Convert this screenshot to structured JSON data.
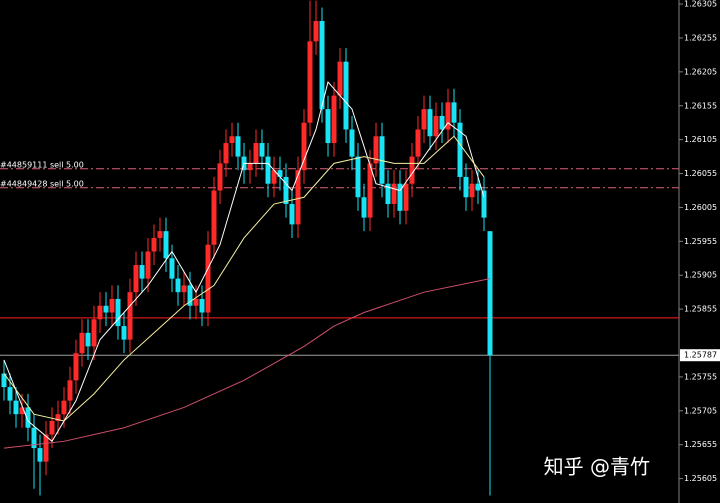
{
  "chart_data": {
    "type": "candlestick",
    "up_color": "#ff2a2a",
    "down_color": "#19e3f5",
    "ylim": [
      1.25569,
      1.26311
    ],
    "yticks": [
      1.26305,
      1.26255,
      1.26205,
      1.26155,
      1.26105,
      1.26055,
      1.26005,
      1.25955,
      1.25905,
      1.25855,
      1.25755,
      1.25705,
      1.25655,
      1.25605
    ],
    "open": [
      1.2576,
      1.2574,
      1.2572,
      1.257,
      1.2571,
      1.2568,
      1.2565,
      1.2563,
      1.2567,
      1.2569,
      1.257,
      1.2572,
      1.2575,
      1.2579,
      1.2582,
      1.258,
      1.2584,
      1.2586,
      1.2585,
      1.2587,
      1.2583,
      1.2581,
      1.2588,
      1.2592,
      1.259,
      1.2594,
      1.2596,
      1.2597,
      1.2593,
      1.259,
      1.2588,
      1.2589,
      1.2586,
      1.2587,
      1.2585,
      1.2595,
      1.2603,
      1.2607,
      1.261,
      1.2611,
      1.2608,
      1.2606,
      1.2607,
      1.261,
      1.2608,
      1.2604,
      1.2606,
      1.2605,
      1.2601,
      1.2598,
      1.2606,
      1.2613,
      1.2625,
      1.2628,
      1.2615,
      1.261,
      1.2617,
      1.2622,
      1.2612,
      1.2608,
      1.2602,
      1.2599,
      1.2607,
      1.2611,
      1.2604,
      1.2601,
      1.2604,
      1.26,
      1.2604,
      1.2608,
      1.2612,
      1.2615,
      1.2611,
      1.2614,
      1.2612,
      1.2616,
      1.2613,
      1.2605,
      1.2602,
      1.2604,
      1.2603,
      1.2597
    ],
    "high": [
      1.2578,
      1.2576,
      1.2574,
      1.2573,
      1.2573,
      1.257,
      1.2567,
      1.2569,
      1.2571,
      1.2572,
      1.2574,
      1.2577,
      1.2581,
      1.2584,
      1.2584,
      1.2586,
      1.2588,
      1.2588,
      1.2589,
      1.2589,
      1.2585,
      1.259,
      1.2594,
      1.2594,
      1.2596,
      1.2598,
      1.2599,
      1.2599,
      1.2595,
      1.2592,
      1.2591,
      1.2591,
      1.2589,
      1.2589,
      1.2597,
      1.2605,
      1.2609,
      1.2612,
      1.2613,
      1.2613,
      1.261,
      1.2609,
      1.2612,
      1.2612,
      1.261,
      1.2608,
      1.2608,
      1.2607,
      1.2603,
      1.2608,
      1.2615,
      1.2631,
      1.2631,
      1.263,
      1.2617,
      1.2619,
      1.2624,
      1.2624,
      1.2614,
      1.261,
      1.2604,
      1.2609,
      1.2613,
      1.2613,
      1.2606,
      1.2606,
      1.2606,
      1.2606,
      1.261,
      1.2614,
      1.2617,
      1.2617,
      1.2616,
      1.2616,
      1.2618,
      1.2618,
      1.2615,
      1.2607,
      1.2606,
      1.2606,
      1.2605,
      1.2597
    ],
    "low": [
      1.2572,
      1.257,
      1.2568,
      1.2568,
      1.2566,
      1.2559,
      1.2558,
      1.2561,
      1.2565,
      1.2567,
      1.2568,
      1.257,
      1.2573,
      1.2577,
      1.2578,
      1.2578,
      1.2582,
      1.2583,
      1.2583,
      1.2581,
      1.2579,
      1.2579,
      1.2586,
      1.2588,
      1.2588,
      1.2592,
      1.2594,
      1.2591,
      1.2588,
      1.2586,
      1.2586,
      1.2584,
      1.2584,
      1.2583,
      1.2583,
      1.2593,
      1.2601,
      1.2605,
      1.2608,
      1.2606,
      1.2604,
      1.2604,
      1.2605,
      1.2606,
      1.2602,
      1.2602,
      1.2603,
      1.2599,
      1.2596,
      1.2596,
      1.2604,
      1.2611,
      1.2623,
      1.2613,
      1.2608,
      1.2608,
      1.2615,
      1.261,
      1.2606,
      1.26,
      1.2597,
      1.2597,
      1.2605,
      1.2602,
      1.2599,
      1.2599,
      1.2598,
      1.2598,
      1.2602,
      1.2606,
      1.261,
      1.2609,
      1.2609,
      1.261,
      1.261,
      1.2611,
      1.2603,
      1.26,
      1.26,
      1.2601,
      1.2597,
      1.2558
    ],
    "close": [
      1.2574,
      1.2572,
      1.257,
      1.2571,
      1.2568,
      1.2565,
      1.2563,
      1.2567,
      1.2569,
      1.257,
      1.2572,
      1.2575,
      1.2579,
      1.2582,
      1.258,
      1.2584,
      1.2586,
      1.2585,
      1.2587,
      1.2583,
      1.2581,
      1.2588,
      1.2592,
      1.259,
      1.2594,
      1.2596,
      1.2597,
      1.2593,
      1.259,
      1.2588,
      1.2589,
      1.2586,
      1.2587,
      1.2585,
      1.2595,
      1.2603,
      1.2607,
      1.261,
      1.2611,
      1.2608,
      1.2606,
      1.2607,
      1.261,
      1.2608,
      1.2604,
      1.2606,
      1.2605,
      1.2601,
      1.2598,
      1.2606,
      1.2613,
      1.2625,
      1.2628,
      1.2615,
      1.261,
      1.2617,
      1.2622,
      1.2612,
      1.2608,
      1.2602,
      1.2599,
      1.2607,
      1.2611,
      1.2604,
      1.2601,
      1.2604,
      1.26,
      1.2604,
      1.2608,
      1.2612,
      1.2615,
      1.2611,
      1.2614,
      1.2612,
      1.2616,
      1.2613,
      1.2605,
      1.2602,
      1.2604,
      1.2603,
      1.2599,
      1.25787
    ],
    "lines": [
      {
        "color": "#ffffff",
        "x": [
          0,
          4,
          8,
          12,
          16,
          20,
          24,
          28,
          32,
          36,
          40,
          44,
          48,
          52,
          54,
          58,
          62,
          66,
          70,
          74,
          77,
          80
        ],
        "values": [
          1.2578,
          1.2569,
          1.2566,
          1.2572,
          1.2581,
          1.2585,
          1.2589,
          1.2594,
          1.2588,
          1.2595,
          1.2607,
          1.2607,
          1.2603,
          1.2612,
          1.2619,
          1.2615,
          1.2604,
          1.2603,
          1.2608,
          1.2613,
          1.2611,
          1.2602
        ]
      },
      {
        "color": "#f4f0a0",
        "x": [
          0,
          5,
          10,
          15,
          20,
          25,
          30,
          35,
          40,
          45,
          50,
          55,
          60,
          65,
          70,
          75,
          80
        ],
        "values": [
          1.2576,
          1.257,
          1.2569,
          1.2573,
          1.2578,
          1.2582,
          1.2586,
          1.2589,
          1.2596,
          1.2601,
          1.2602,
          1.2607,
          1.2608,
          1.2607,
          1.2607,
          1.2611,
          1.2605
        ]
      },
      {
        "color": "#d0506a",
        "x": [
          0,
          10,
          20,
          30,
          40,
          50,
          55,
          60,
          70,
          81
        ],
        "values": [
          1.2565,
          1.2566,
          1.2568,
          1.2571,
          1.2575,
          1.258,
          1.2583,
          1.2585,
          1.2588,
          1.259
        ]
      }
    ],
    "orders": [
      {
        "label": "#44859111 sell 5.00",
        "value": 1.26062
      },
      {
        "label": "#44849428 sell 5.00",
        "value": 1.26034
      }
    ],
    "level": 1.25842,
    "current_price": 1.25787,
    "watermark": "知乎 @青竹"
  }
}
